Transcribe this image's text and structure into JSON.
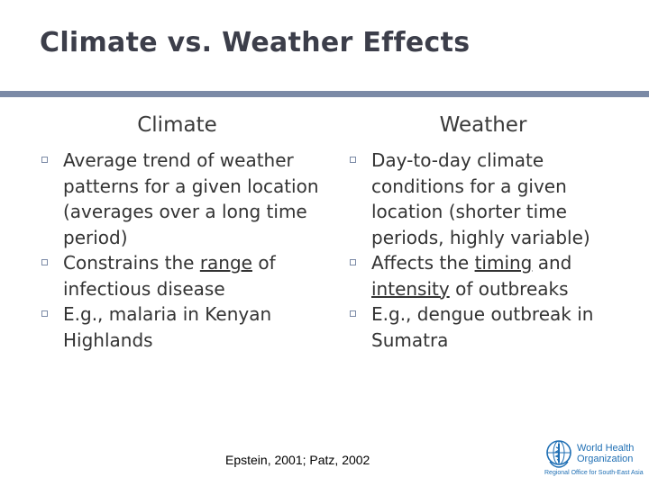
{
  "title": "Climate vs. Weather Effects",
  "columns": {
    "left": {
      "heading": "Climate",
      "bullets": [
        {
          "text": "Average trend of weather patterns for a given location (averages over a long time period)"
        },
        {
          "pre": "Constrains the ",
          "underlined": "range",
          "post": " of infectious disease"
        },
        {
          "text": "E.g., malaria in Kenyan Highlands"
        }
      ]
    },
    "right": {
      "heading": "Weather",
      "bullets": [
        {
          "text": "Day-to-day climate conditions for a given location (shorter time periods, highly variable)"
        },
        {
          "pre": "Affects the ",
          "underlined_1": "timing",
          "mid": " and ",
          "underlined_2": "intensity",
          "post": " of outbreaks"
        },
        {
          "text": "E.g., dengue outbreak in Sumatra"
        }
      ]
    }
  },
  "citation": "Epstein, 2001; Patz, 2002",
  "logo": {
    "line1": "World Health",
    "line2": "Organization",
    "subtitle": "Regional Office for South-East Asia",
    "icon": "who-emblem-icon"
  },
  "colors": {
    "title": "#3c3e4a",
    "rule": "#7b8aa6",
    "logo": "#1f6fb4"
  }
}
